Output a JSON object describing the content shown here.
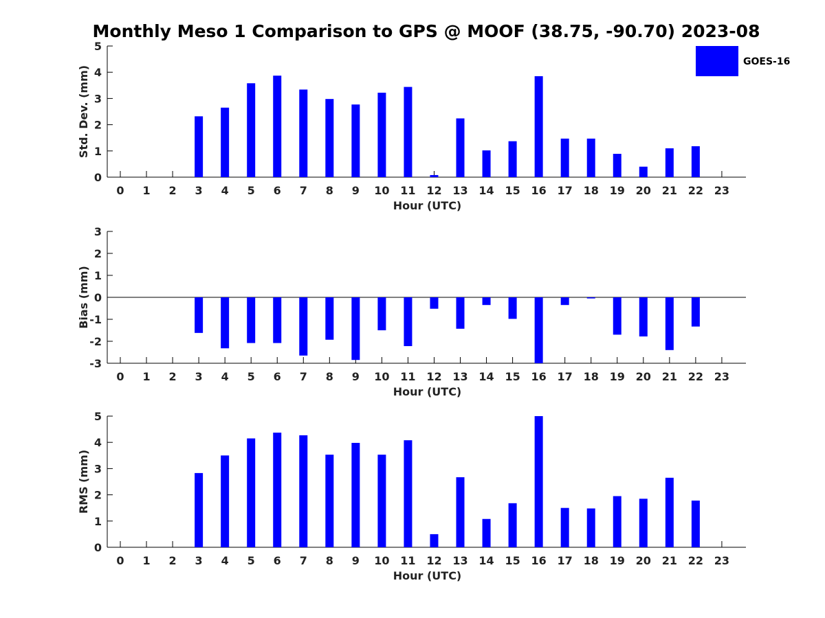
{
  "title": "Monthly Meso 1 Comparison to GPS @ MOOF (38.75, -90.70) 2023-08",
  "legend": {
    "label": "GOES-16",
    "color": "#0000ff",
    "placement": "top-right"
  },
  "chart_data": [
    {
      "type": "bar",
      "xlabel": "Hour (UTC)",
      "ylabel": "Std. Dev. (mm)",
      "ylim": [
        0,
        5
      ],
      "yticks": [
        "0",
        "1",
        "2",
        "3",
        "4",
        "5"
      ],
      "categories": [
        "0",
        "1",
        "2",
        "3",
        "4",
        "5",
        "6",
        "7",
        "8",
        "9",
        "10",
        "11",
        "12",
        "13",
        "14",
        "15",
        "16",
        "17",
        "18",
        "19",
        "20",
        "21",
        "22",
        "23"
      ],
      "series": [
        {
          "name": "GOES-16",
          "values": [
            null,
            null,
            null,
            2.32,
            2.65,
            3.58,
            3.87,
            3.34,
            2.98,
            2.77,
            3.22,
            3.44,
            0.08,
            2.24,
            1.02,
            1.37,
            3.85,
            1.47,
            1.47,
            0.89,
            0.4,
            1.1,
            1.18,
            null
          ]
        }
      ]
    },
    {
      "type": "bar",
      "xlabel": "Hour (UTC)",
      "ylabel": "Bias (mm)",
      "ylim": [
        -3,
        3
      ],
      "yticks": [
        "-3",
        "-2",
        "-1",
        "0",
        "1",
        "2",
        "3"
      ],
      "categories": [
        "0",
        "1",
        "2",
        "3",
        "4",
        "5",
        "6",
        "7",
        "8",
        "9",
        "10",
        "11",
        "12",
        "13",
        "14",
        "15",
        "16",
        "17",
        "18",
        "19",
        "20",
        "21",
        "22",
        "23"
      ],
      "series": [
        {
          "name": "GOES-16",
          "values": [
            null,
            null,
            null,
            -1.62,
            -2.32,
            -2.08,
            -2.08,
            -2.65,
            -1.93,
            -2.85,
            -1.5,
            -2.22,
            -0.52,
            -1.43,
            -0.35,
            -0.98,
            -3.0,
            -0.35,
            -0.05,
            -1.7,
            -1.78,
            -2.4,
            -1.33,
            null
          ]
        }
      ]
    },
    {
      "type": "bar",
      "xlabel": "Hour (UTC)",
      "ylabel": "RMS (mm)",
      "ylim": [
        0,
        5
      ],
      "yticks": [
        "0",
        "1",
        "2",
        "3",
        "4",
        "5"
      ],
      "categories": [
        "0",
        "1",
        "2",
        "3",
        "4",
        "5",
        "6",
        "7",
        "8",
        "9",
        "10",
        "11",
        "12",
        "13",
        "14",
        "15",
        "16",
        "17",
        "18",
        "19",
        "20",
        "21",
        "22",
        "23"
      ],
      "series": [
        {
          "name": "GOES-16",
          "values": [
            null,
            null,
            null,
            2.83,
            3.5,
            4.15,
            4.37,
            4.27,
            3.53,
            3.98,
            3.53,
            4.08,
            0.5,
            2.67,
            1.08,
            1.68,
            5.0,
            1.5,
            1.48,
            1.95,
            1.85,
            2.65,
            1.78,
            null
          ]
        }
      ]
    }
  ]
}
